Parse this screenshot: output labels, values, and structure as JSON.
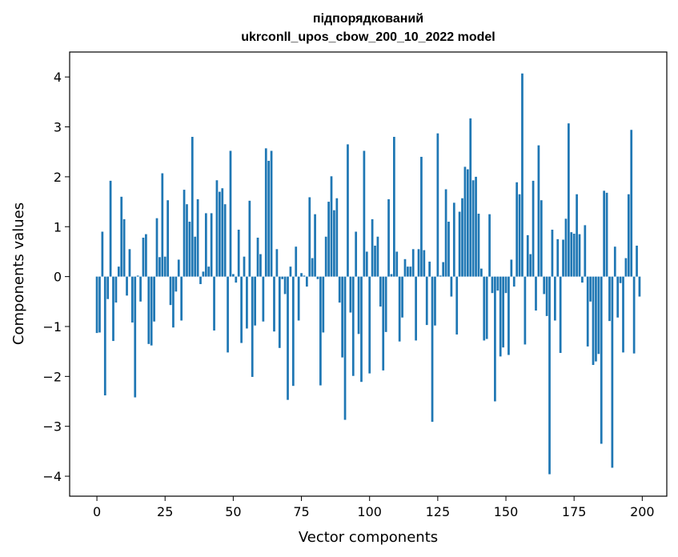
{
  "chart_data": {
    "type": "bar",
    "title": "підпорядкований",
    "subtitle": "ukrconll_upos_cbow_200_10_2022 model",
    "xlabel": "Vector components",
    "ylabel": "Components values",
    "xlim": [
      -10,
      209
    ],
    "ylim": [
      -4.4,
      4.5
    ],
    "xticks": [
      0,
      25,
      50,
      75,
      100,
      125,
      150,
      175,
      200
    ],
    "yticks": [
      -4,
      -3,
      -2,
      -1,
      0,
      1,
      2,
      3,
      4
    ],
    "ytick_labels": [
      "−4",
      "−3",
      "−2",
      "−1",
      "0",
      "1",
      "2",
      "3",
      "4"
    ],
    "bar_color": "#1f77b4",
    "grid": false,
    "legend": "none",
    "x": [
      0,
      1,
      2,
      3,
      4,
      5,
      6,
      7,
      8,
      9,
      10,
      11,
      12,
      13,
      14,
      15,
      16,
      17,
      18,
      19,
      20,
      21,
      22,
      23,
      24,
      25,
      26,
      27,
      28,
      29,
      30,
      31,
      32,
      33,
      34,
      35,
      36,
      37,
      38,
      39,
      40,
      41,
      42,
      43,
      44,
      45,
      46,
      47,
      48,
      49,
      50,
      51,
      52,
      53,
      54,
      55,
      56,
      57,
      58,
      59,
      60,
      61,
      62,
      63,
      64,
      65,
      66,
      67,
      68,
      69,
      70,
      71,
      72,
      73,
      74,
      75,
      76,
      77,
      78,
      79,
      80,
      81,
      82,
      83,
      84,
      85,
      86,
      87,
      88,
      89,
      90,
      91,
      92,
      93,
      94,
      95,
      96,
      97,
      98,
      99,
      100,
      101,
      102,
      103,
      104,
      105,
      106,
      107,
      108,
      109,
      110,
      111,
      112,
      113,
      114,
      115,
      116,
      117,
      118,
      119,
      120,
      121,
      122,
      123,
      124,
      125,
      126,
      127,
      128,
      129,
      130,
      131,
      132,
      133,
      134,
      135,
      136,
      137,
      138,
      139,
      140,
      141,
      142,
      143,
      144,
      145,
      146,
      147,
      148,
      149,
      150,
      151,
      152,
      153,
      154,
      155,
      156,
      157,
      158,
      159,
      160,
      161,
      162,
      163,
      164,
      165,
      166,
      167,
      168,
      169,
      170,
      171,
      172,
      173,
      174,
      175,
      176,
      177,
      178,
      179,
      180,
      181,
      182,
      183,
      184,
      185,
      186,
      187,
      188,
      189,
      190,
      191,
      192,
      193,
      194,
      195,
      196,
      197,
      198,
      199
    ],
    "values": [
      -1.13,
      -1.12,
      0.9,
      -2.38,
      -0.45,
      1.92,
      -1.29,
      -0.52,
      0.2,
      1.6,
      1.15,
      -0.38,
      0.55,
      -0.92,
      -2.42,
      0.02,
      -0.5,
      0.78,
      0.85,
      -1.35,
      -1.38,
      -0.9,
      1.17,
      0.39,
      2.07,
      0.4,
      1.53,
      -0.57,
      -1.02,
      -0.3,
      0.34,
      -0.88,
      1.74,
      1.45,
      1.1,
      2.8,
      0.8,
      1.55,
      -0.15,
      0.1,
      1.27,
      0.2,
      1.27,
      -1.08,
      1.93,
      1.7,
      1.77,
      1.45,
      -1.52,
      2.52,
      0.05,
      -0.12,
      0.94,
      -1.33,
      0.4,
      -1.04,
      1.52,
      -2.01,
      -0.98,
      0.78,
      0.45,
      -0.9,
      2.57,
      2.32,
      2.52,
      -1.1,
      0.55,
      -1.43,
      -0.05,
      -0.35,
      -2.47,
      0.2,
      -2.19,
      0.6,
      -0.88,
      0.07,
      0.02,
      -0.2,
      1.59,
      0.37,
      1.25,
      -0.05,
      -2.18,
      -1.12,
      0.8,
      1.5,
      2.01,
      1.33,
      1.57,
      -0.52,
      -1.62,
      -2.87,
      2.65,
      -0.72,
      -1.99,
      0.9,
      -1.15,
      -2.11,
      2.52,
      0.5,
      -1.94,
      1.15,
      0.62,
      0.8,
      -0.6,
      -1.88,
      -1.11,
      1.55,
      0.05,
      2.8,
      0.5,
      -1.3,
      -0.82,
      0.35,
      0.2,
      0.2,
      0.55,
      -1.28,
      0.55,
      2.4,
      0.53,
      -0.97,
      0.3,
      -2.91,
      -0.98,
      2.87,
      0.02,
      0.29,
      1.75,
      1.1,
      -0.4,
      1.48,
      -1.16,
      1.3,
      1.57,
      2.2,
      2.15,
      3.17,
      1.93,
      2.0,
      1.26,
      0.16,
      -1.28,
      -1.25,
      1.25,
      -0.33,
      -2.5,
      -0.28,
      -1.6,
      -1.42,
      -0.33,
      -1.57,
      0.34,
      -0.2,
      1.89,
      1.65,
      4.07,
      -1.36,
      0.83,
      0.45,
      1.92,
      -0.68,
      2.63,
      1.53,
      -0.35,
      -0.79,
      -3.96,
      0.94,
      -0.88,
      0.75,
      -1.53,
      0.74,
      1.16,
      3.07,
      0.89,
      0.86,
      1.65,
      0.85,
      -0.12,
      1.03,
      -1.4,
      -0.5,
      -1.77,
      -1.7,
      -1.55,
      -3.35,
      1.72,
      1.68,
      -0.89,
      -3.83,
      0.6,
      -0.82,
      -0.13,
      -1.52,
      0.37,
      1.65,
      2.94,
      -1.54,
      0.62,
      -0.4
    ]
  }
}
